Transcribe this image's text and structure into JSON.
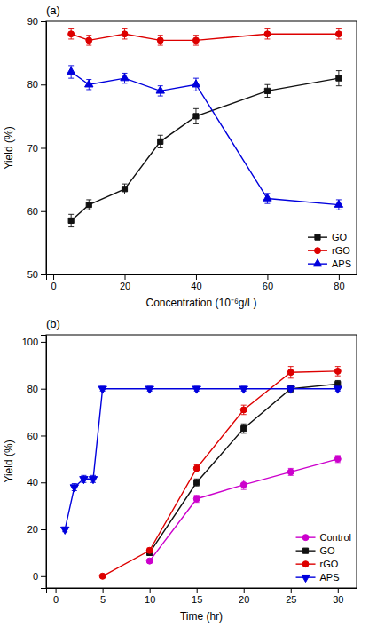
{
  "chart_data": [
    {
      "type": "line",
      "annotations": [
        "(a)"
      ],
      "xlabel": "Concentration (10⁻⁶g/L)",
      "ylabel": "Yield (%)",
      "xlim": [
        -2,
        85
      ],
      "ylim": [
        50,
        90
      ],
      "xticks": [
        0,
        20,
        40,
        60,
        80
      ],
      "yticks": [
        50,
        60,
        70,
        80,
        90
      ],
      "grid": false,
      "legend": "lower right",
      "series": [
        {
          "name": "GO",
          "color": "#111111",
          "marker": "square",
          "line_style": "solid",
          "x": [
            5,
            10,
            20,
            30,
            40,
            60,
            80
          ],
          "values": [
            58.5,
            61.0,
            63.5,
            71.0,
            75.0,
            79.0,
            81.0
          ],
          "errors": [
            1.0,
            0.8,
            0.8,
            1.0,
            1.2,
            1.0,
            1.2
          ]
        },
        {
          "name": "rGO",
          "color": "#dd0000",
          "marker": "circle",
          "line_style": "solid",
          "x": [
            5,
            10,
            20,
            30,
            40,
            60,
            80
          ],
          "values": [
            88.0,
            87.0,
            88.0,
            87.0,
            87.0,
            88.0,
            88.0
          ],
          "errors": [
            0.8,
            0.8,
            0.8,
            0.8,
            0.8,
            0.8,
            0.8
          ]
        },
        {
          "name": "APS",
          "color": "#0000dd",
          "marker": "triangle-up",
          "line_style": "solid",
          "x": [
            5,
            10,
            20,
            30,
            40,
            60,
            80
          ],
          "values": [
            82.0,
            80.0,
            81.0,
            79.0,
            80.0,
            62.0,
            61.0
          ],
          "errors": [
            1.0,
            0.8,
            0.8,
            0.8,
            1.0,
            0.8,
            0.8
          ]
        }
      ]
    },
    {
      "type": "line",
      "annotations": [
        "(b)"
      ],
      "xlabel": "Time (hr)",
      "ylabel": "Yield (%)",
      "xlim": [
        -1,
        32
      ],
      "ylim": [
        -5,
        103
      ],
      "xticks": [
        0,
        5,
        10,
        15,
        20,
        25,
        30
      ],
      "yticks": [
        0,
        20,
        40,
        60,
        80,
        100
      ],
      "grid": false,
      "legend": "lower right",
      "series": [
        {
          "name": "Control",
          "color": "#cc00cc",
          "marker": "circle",
          "line_style": "solid",
          "x": [
            10,
            15,
            20,
            25,
            30
          ],
          "values": [
            6.5,
            33.0,
            39.0,
            44.5,
            50.0
          ],
          "errors": [
            0.8,
            1.5,
            2.0,
            1.5,
            1.5
          ]
        },
        {
          "name": "GO",
          "color": "#111111",
          "marker": "square",
          "line_style": "solid",
          "x": [
            10,
            15,
            20,
            25,
            30
          ],
          "values": [
            10.0,
            40.0,
            63.0,
            80.0,
            82.0
          ],
          "errors": [
            1.0,
            1.5,
            2.0,
            1.5,
            1.5
          ]
        },
        {
          "name": "rGO",
          "color": "#dd0000",
          "marker": "circle",
          "line_style": "solid",
          "x": [
            5,
            10,
            15,
            20,
            25,
            30
          ],
          "values": [
            0.0,
            11.0,
            46.0,
            71.0,
            87.0,
            87.5
          ],
          "errors": [
            0.5,
            1.0,
            1.5,
            2.0,
            2.5,
            2.0
          ]
        },
        {
          "name": "APS",
          "color": "#0000dd",
          "marker": "triangle-down",
          "line_style": "solid",
          "x": [
            1,
            2,
            3,
            4,
            5,
            10,
            15,
            20,
            25,
            30
          ],
          "values": [
            20.0,
            38.0,
            41.5,
            41.5,
            80.0,
            80.0,
            80.0,
            80.0,
            80.0,
            80.0
          ],
          "errors": [
            1.0,
            1.5,
            1.5,
            1.5,
            1.0,
            1.0,
            1.0,
            1.0,
            1.0,
            1.0
          ]
        }
      ]
    }
  ]
}
